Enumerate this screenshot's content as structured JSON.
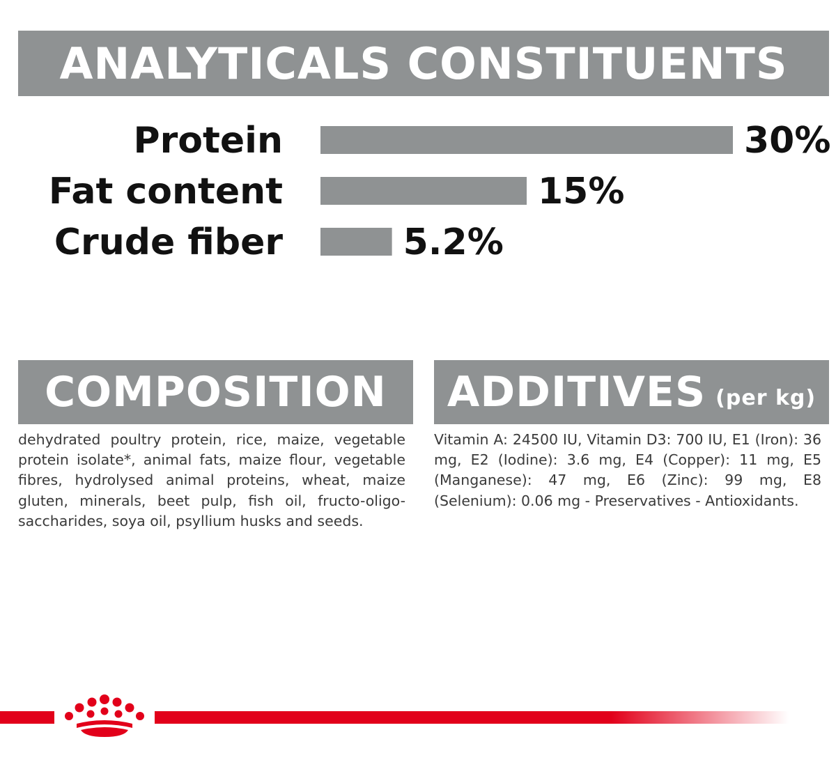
{
  "sections": {
    "analyticals_title": "ANALYTICALS CONSTITUENTS",
    "composition_title": "COMPOSITION",
    "additives_title": "ADDITIVES",
    "additives_unit": "(per kg)"
  },
  "composition_text": "dehydrated poultry protein, rice, maize, vegetable protein isolate*, animal fats, maize flour, vegetable fibres, hydrolysed animal proteins, wheat, maize gluten, minerals, beet pulp, fish oil, fructo-oligo-saccharides, soya oil, psyllium husks and seeds.",
  "additives_text": "Vitamin A: 24500 IU, Vitamin D3: 700 IU, E1 (Iron): 36 mg, E2 (Iodine): 3.6 mg, E4 (Copper): 11 mg, E5 (Manganese): 47 mg, E6 (Zinc): 99 mg, E8 (Selenium): 0.06 mg - Preservatives - Antioxidants.",
  "colors": {
    "banner": "#8f9293",
    "bar": "#8f9293",
    "brand_red": "#e2001a",
    "text": "#111111"
  },
  "logo": {
    "icon": "crown-icon"
  },
  "chart_data": {
    "type": "bar",
    "orientation": "horizontal",
    "title": "ANALYTICALS CONSTITUENTS",
    "categories": [
      "Protein",
      "Fat content",
      "Crude fiber"
    ],
    "values": [
      30,
      15,
      5.2
    ],
    "value_labels": [
      "30%",
      "15%",
      "5.2%"
    ],
    "unit": "%",
    "xlim": [
      0,
      30
    ],
    "grid": false
  }
}
